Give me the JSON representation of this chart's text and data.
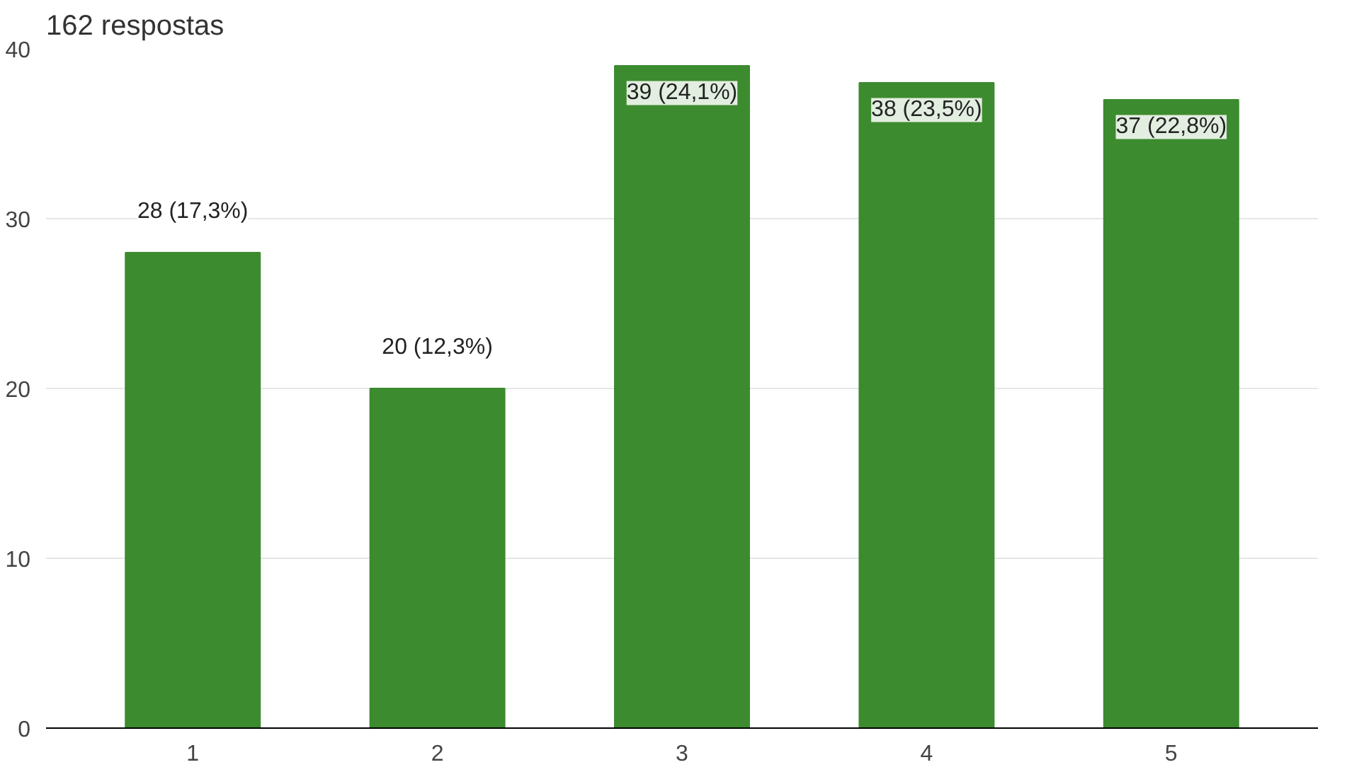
{
  "chart_data": {
    "type": "bar",
    "title": "162 respostas",
    "categories": [
      "1",
      "2",
      "3",
      "4",
      "5"
    ],
    "values": [
      28,
      20,
      39,
      38,
      37
    ],
    "value_labels": [
      "28 (17,3%)",
      "20 (12,3%)",
      "39 (24,1%)",
      "38 (23,5%)",
      "37 (22,8%)"
    ],
    "color": "#3d8b2f",
    "ylim": [
      0,
      40
    ],
    "yticks": [
      0,
      10,
      20,
      30,
      40
    ],
    "grid": "y"
  }
}
